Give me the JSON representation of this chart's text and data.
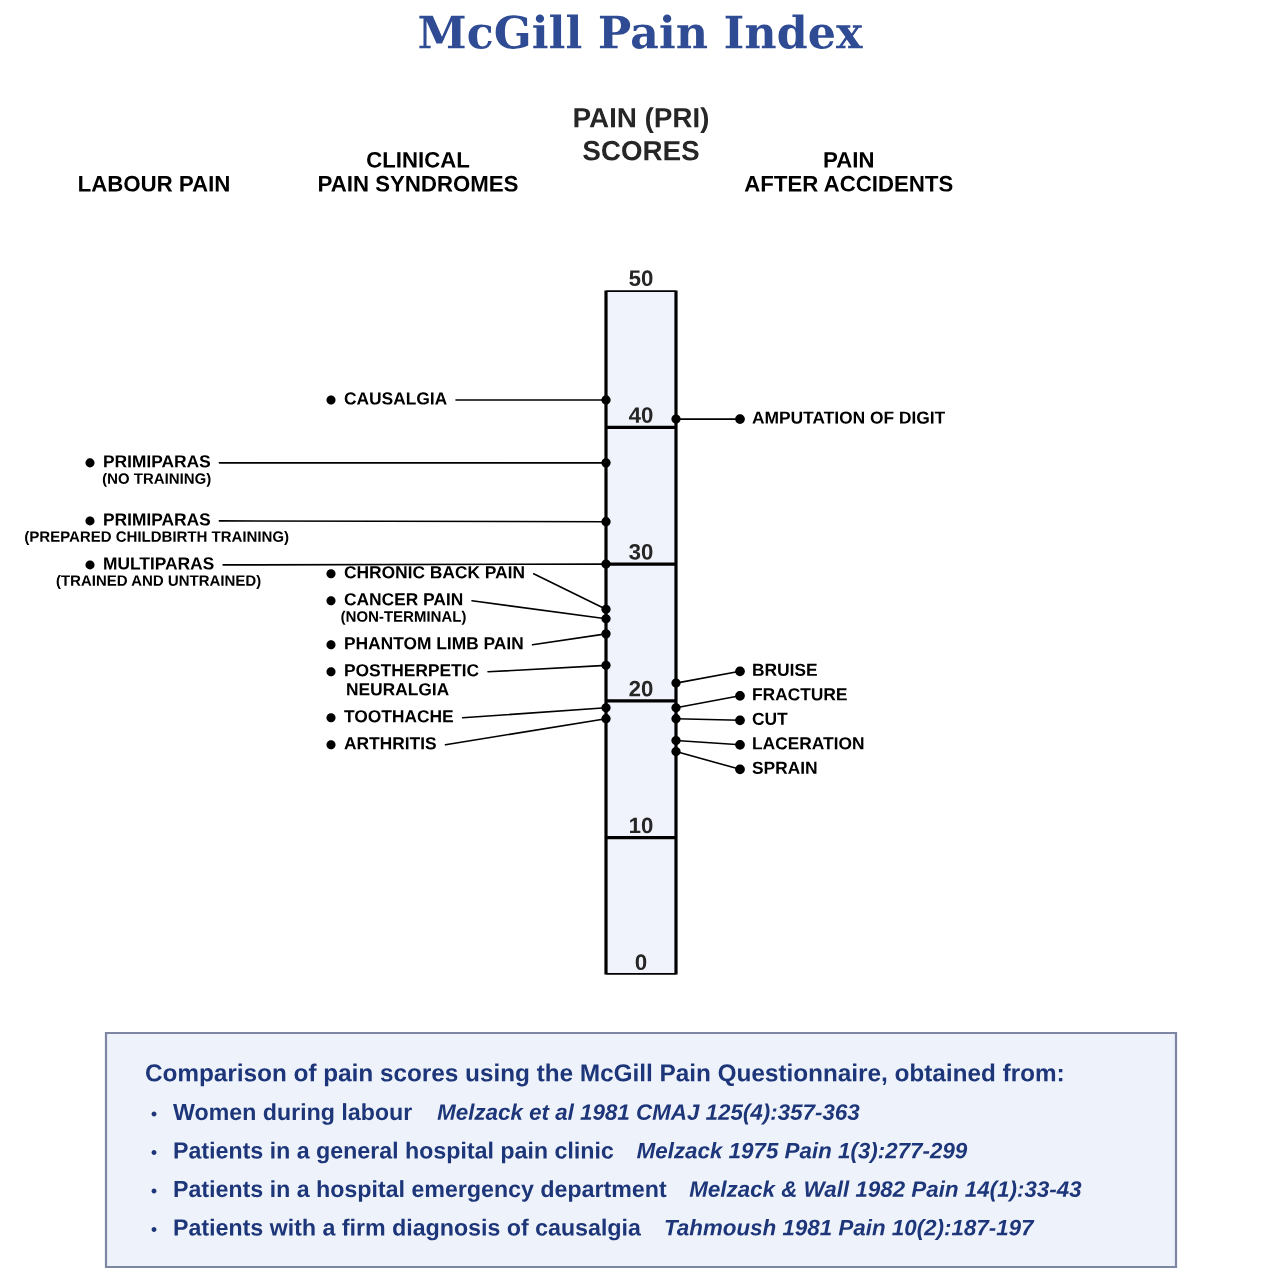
{
  "chart_data": {
    "type": "scatter",
    "title": "McGill Pain Index",
    "ylabel": "PAIN (PRI)\nSCORES",
    "categories": [
      null,
      null
    ],
    "ylim": [
      0,
      50
    ],
    "yticks": [
      0,
      10,
      20,
      30,
      40,
      50
    ],
    "grid": "y",
    "marker": "circle",
    "series": [
      {
        "color": "#000000",
        "values": [
          37.4,
          null
        ],
        "value_labels": [
          "PRIMIPARAS\n(NO TRAINING)",
          null
        ]
      },
      {
        "color": "#000000",
        "values": [
          33.1,
          null
        ],
        "value_labels": [
          "PRIMIPARAS\n(PREPARED CHILDBIRTH TRAINING)",
          null
        ]
      },
      {
        "color": "#000000",
        "values": [
          30.0,
          null
        ],
        "value_labels": [
          "MULTIPARAS\n(TRAINED AND UNTRAINED)",
          null
        ]
      },
      {
        "color": "#000000",
        "values": [
          42.0,
          null
        ],
        "value_labels": [
          "CAUSALGIA",
          null
        ]
      },
      {
        "color": "#000000",
        "values": [
          26.7,
          null
        ],
        "value_labels": [
          "CHRONIC BACK PAIN",
          null
        ]
      },
      {
        "color": "#000000",
        "values": [
          26.0,
          null
        ],
        "value_labels": [
          "CANCER PAIN\n(NON-TERMINAL)",
          null
        ]
      },
      {
        "color": "#000000",
        "values": [
          24.9,
          null
        ],
        "value_labels": [
          "PHANTOM LIMB PAIN",
          null
        ]
      },
      {
        "color": "#000000",
        "values": [
          22.6,
          null
        ],
        "value_labels": [
          "POSTHERPETIC\nNEURALGIA",
          null
        ]
      },
      {
        "color": "#000000",
        "values": [
          19.5,
          null
        ],
        "value_labels": [
          "TOOTHACHE",
          null
        ]
      },
      {
        "color": "#000000",
        "values": [
          18.7,
          null
        ],
        "value_labels": [
          "ARTHRITIS",
          null
        ]
      },
      {
        "color": "#000000",
        "values": [
          null,
          40.6
        ],
        "value_labels": [
          null,
          "AMPUTATION OF DIGIT"
        ]
      },
      {
        "color": "#000000",
        "values": [
          null,
          21.3
        ],
        "value_labels": [
          null,
          "BRUISE"
        ]
      },
      {
        "color": "#000000",
        "values": [
          null,
          19.5
        ],
        "value_labels": [
          null,
          "FRACTURE"
        ]
      },
      {
        "color": "#000000",
        "values": [
          null,
          18.7
        ],
        "value_labels": [
          null,
          "CUT"
        ]
      },
      {
        "color": "#000000",
        "values": [
          null,
          17.1
        ],
        "value_labels": [
          null,
          "LACERATION"
        ]
      },
      {
        "color": "#000000",
        "values": [
          null,
          16.3
        ],
        "value_labels": [
          null,
          "SPRAIN"
        ]
      }
    ],
    "annotations": [
      "LABOUR PAIN",
      "CLINICAL\nPAIN SYNDROMES",
      "PAIN\nAFTER ACCIDENTS",
      "Comparison of pain scores using the McGill Pain Questionnaire, obtained from:",
      "Women during labour",
      "Melzack et al 1981 CMAJ 125(4):357-363",
      "Patients in a general hospital pain clinic",
      "Melzack 1975 Pain 1(3):277-299",
      "Patients in a hospital emergency department",
      "Melzack & Wall 1982 Pain 14(1):33-43",
      "Patients with a firm diagnosis of causalgia",
      "Tahmoush 1981 Pain 10(2):187-197"
    ]
  }
}
